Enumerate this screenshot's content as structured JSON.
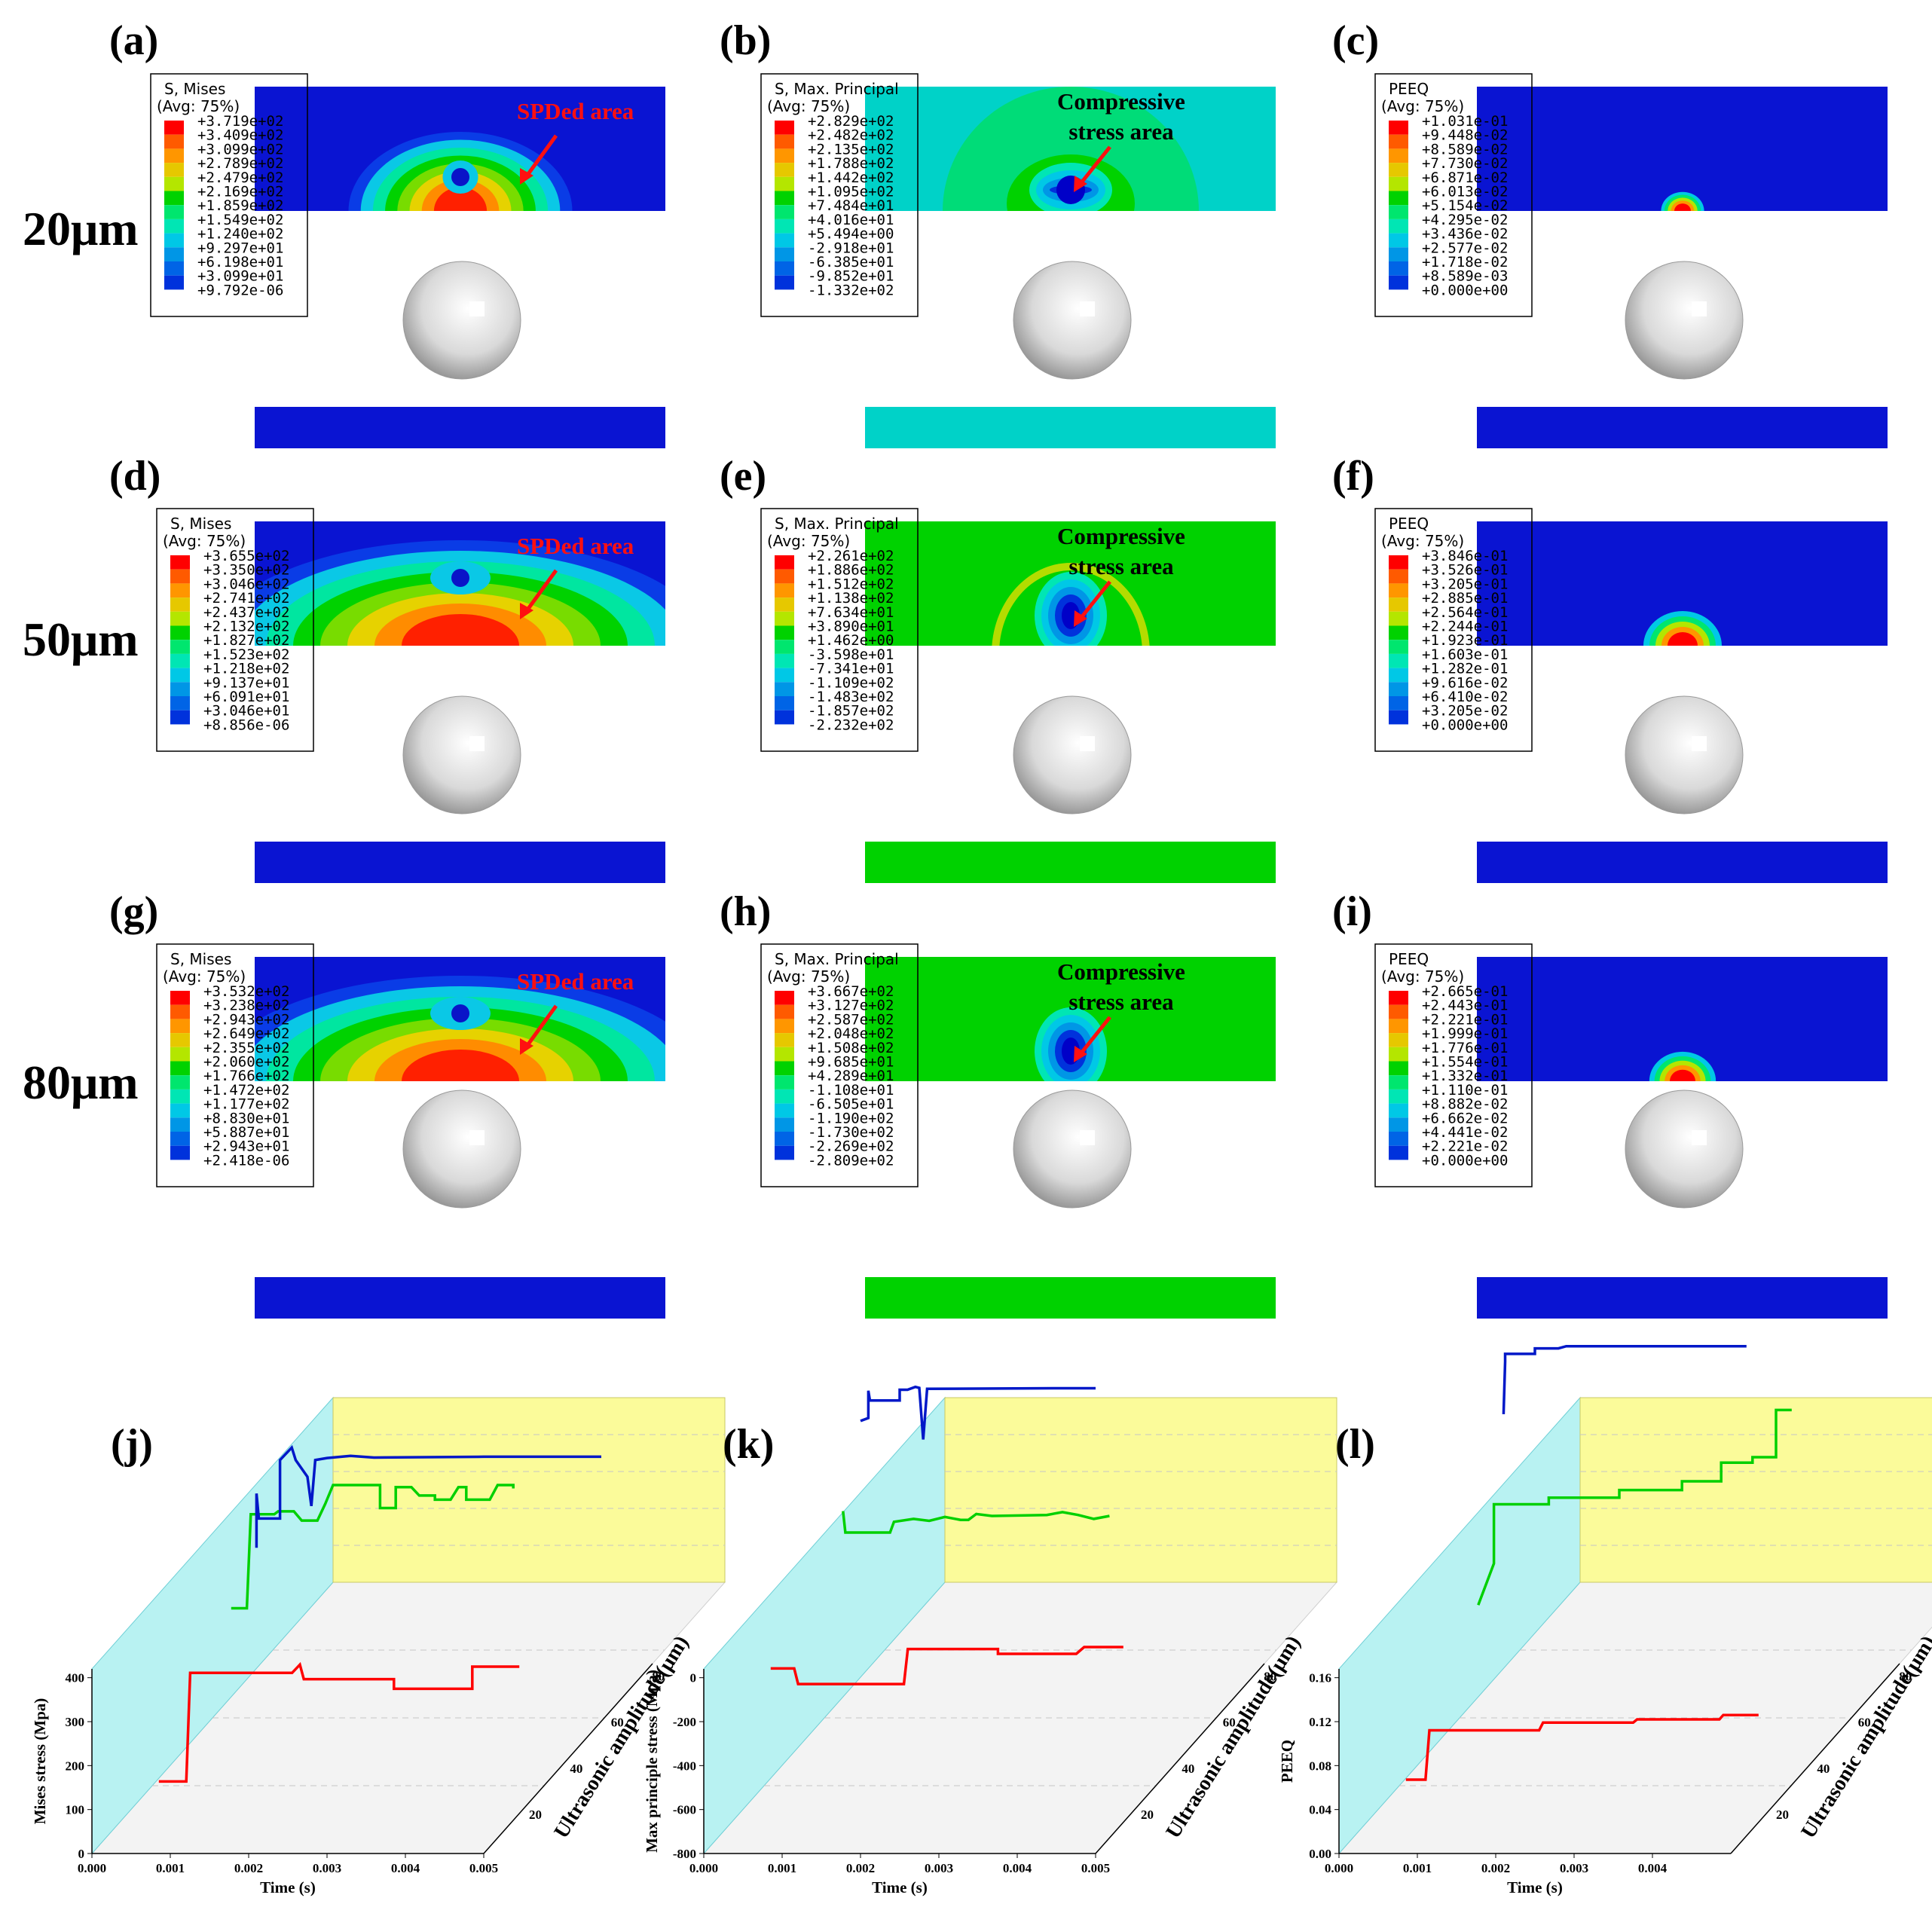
{
  "figure": {
    "rows": [
      {
        "label": "20μm",
        "plate": [
          "#0a14d2",
          "#00d2c8",
          "#0a14d2"
        ]
      },
      {
        "label": "50μm",
        "plate": [
          "#0a14d2",
          "#00d200",
          "#0a14d2"
        ]
      },
      {
        "label": "80μm",
        "plate": [
          "#0a14d2",
          "#00d200",
          "#0a14d2"
        ]
      }
    ],
    "panels": [
      {
        "id": "(a)",
        "variable": "S, Mises",
        "avg": "(Avg: 75%)",
        "values": [
          "+3.719e+02",
          "+3.409e+02",
          "+3.099e+02",
          "+2.789e+02",
          "+2.479e+02",
          "+2.169e+02",
          "+1.859e+02",
          "+1.549e+02",
          "+1.240e+02",
          "+9.297e+01",
          "+6.198e+01",
          "+3.099e+01",
          "+9.792e-06"
        ],
        "annotation": [
          "SPDed area"
        ]
      },
      {
        "id": "(b)",
        "variable": "S, Max. Principal",
        "avg": "(Avg: 75%)",
        "values": [
          "+2.829e+02",
          "+2.482e+02",
          "+2.135e+02",
          "+1.788e+02",
          "+1.442e+02",
          "+1.095e+02",
          "+7.484e+01",
          "+4.016e+01",
          "+5.494e+00",
          "-2.918e+01",
          "-6.385e+01",
          "-9.852e+01",
          "-1.332e+02"
        ],
        "annotation": [
          "Compressive",
          "stress area"
        ]
      },
      {
        "id": "(c)",
        "variable": "PEEQ",
        "avg": "(Avg: 75%)",
        "values": [
          "+1.031e-01",
          "+9.448e-02",
          "+8.589e-02",
          "+7.730e-02",
          "+6.871e-02",
          "+6.013e-02",
          "+5.154e-02",
          "+4.295e-02",
          "+3.436e-02",
          "+2.577e-02",
          "+1.718e-02",
          "+8.589e-03",
          "+0.000e+00"
        ],
        "annotation": []
      },
      {
        "id": "(d)",
        "variable": "S, Mises",
        "avg": "(Avg: 75%)",
        "values": [
          "+3.655e+02",
          "+3.350e+02",
          "+3.046e+02",
          "+2.741e+02",
          "+2.437e+02",
          "+2.132e+02",
          "+1.827e+02",
          "+1.523e+02",
          "+1.218e+02",
          "+9.137e+01",
          "+6.091e+01",
          "+3.046e+01",
          "+8.856e-06"
        ],
        "annotation": [
          "SPDed area"
        ]
      },
      {
        "id": "(e)",
        "variable": "S, Max. Principal",
        "avg": "(Avg: 75%)",
        "values": [
          "+2.261e+02",
          "+1.886e+02",
          "+1.512e+02",
          "+1.138e+02",
          "+7.634e+01",
          "+3.890e+01",
          "+1.462e+00",
          "-3.598e+01",
          "-7.341e+01",
          "-1.109e+02",
          "-1.483e+02",
          "-1.857e+02",
          "-2.232e+02"
        ],
        "annotation": [
          "Compressive",
          "stress area"
        ]
      },
      {
        "id": "(f)",
        "variable": "PEEQ",
        "avg": "(Avg: 75%)",
        "values": [
          "+3.846e-01",
          "+3.526e-01",
          "+3.205e-01",
          "+2.885e-01",
          "+2.564e-01",
          "+2.244e-01",
          "+1.923e-01",
          "+1.603e-01",
          "+1.282e-01",
          "+9.616e-02",
          "+6.410e-02",
          "+3.205e-02",
          "+0.000e+00"
        ],
        "annotation": []
      },
      {
        "id": "(g)",
        "variable": "S, Mises",
        "avg": "(Avg: 75%)",
        "values": [
          "+3.532e+02",
          "+3.238e+02",
          "+2.943e+02",
          "+2.649e+02",
          "+2.355e+02",
          "+2.060e+02",
          "+1.766e+02",
          "+1.472e+02",
          "+1.177e+02",
          "+8.830e+01",
          "+5.887e+01",
          "+2.943e+01",
          "+2.418e-06"
        ],
        "annotation": [
          "SPDed area"
        ]
      },
      {
        "id": "(h)",
        "variable": "S, Max. Principal",
        "avg": "(Avg: 75%)",
        "values": [
          "+3.667e+02",
          "+3.127e+02",
          "+2.587e+02",
          "+2.048e+02",
          "+1.508e+02",
          "+9.685e+01",
          "+4.289e+01",
          "-1.108e+01",
          "-6.505e+01",
          "-1.190e+02",
          "-1.730e+02",
          "-2.269e+02",
          "-2.809e+02"
        ],
        "annotation": [
          "Compressive",
          "stress area"
        ]
      },
      {
        "id": "(i)",
        "variable": "PEEQ",
        "avg": "(Avg: 75%)",
        "values": [
          "+2.665e-01",
          "+2.443e-01",
          "+2.221e-01",
          "+1.999e-01",
          "+1.776e-01",
          "+1.554e-01",
          "+1.332e-01",
          "+1.110e-01",
          "+8.882e-02",
          "+6.662e-02",
          "+4.441e-02",
          "+2.221e-02",
          "+0.000e+00"
        ],
        "annotation": []
      }
    ],
    "legend_colors": [
      "#ff0000",
      "#ff5a00",
      "#ff9600",
      "#e6c800",
      "#b4e600",
      "#00d200",
      "#00e66e",
      "#00e6b4",
      "#00c8e6",
      "#0096e6",
      "#0064e6",
      "#0032dc",
      "#0000c8"
    ]
  },
  "chart_data": [
    {
      "id": "(j)",
      "type": "line3d",
      "title": "",
      "xlabel": "Time (s)",
      "ylabel": "Mises stress (Mpa)",
      "zlabel": "Ultrasonic amplitude(μm)",
      "xlim": [
        0,
        0.005
      ],
      "ylim": [
        0,
        420
      ],
      "xticks": [
        "0.000",
        "0.001",
        "0.002",
        "0.003",
        "0.004",
        "0.005"
      ],
      "yticks": [
        "0",
        "100",
        "200",
        "300",
        "400"
      ],
      "zticks": [
        "20",
        "40",
        "60",
        "80"
      ],
      "series": [
        {
          "name": "20μm",
          "color": "#ff0000",
          "depth": 0.0,
          "points": [
            [
              0.0007,
              140
            ],
            [
              0.00105,
              140
            ],
            [
              0.0011,
              400
            ],
            [
              0.0024,
              400
            ],
            [
              0.0025,
              420
            ],
            [
              0.00255,
              385
            ],
            [
              0.0037,
              385
            ],
            [
              0.0037,
              362
            ],
            [
              0.0047,
              362
            ],
            [
              0.0047,
              415
            ],
            [
              0.0053,
              415
            ]
          ]
        },
        {
          "name": "50μm",
          "color": "#00d000",
          "depth": 0.5,
          "points": [
            [
              0.0007,
              360
            ],
            [
              0.0009,
              360
            ],
            [
              0.00095,
              585
            ],
            [
              0.00125,
              585
            ],
            [
              0.0013,
              592
            ],
            [
              0.0015,
              592
            ],
            [
              0.0016,
              570
            ],
            [
              0.0018,
              570
            ],
            [
              0.0019,
              610
            ],
            [
              0.002,
              655
            ],
            [
              0.0026,
              655
            ],
            [
              0.0026,
              600
            ],
            [
              0.0028,
              600
            ],
            [
              0.0028,
              650
            ],
            [
              0.003,
              650
            ],
            [
              0.0031,
              630
            ],
            [
              0.0033,
              630
            ],
            [
              0.0033,
              620
            ],
            [
              0.0035,
              620
            ],
            [
              0.0036,
              650
            ],
            [
              0.0037,
              650
            ],
            [
              0.0037,
              620
            ],
            [
              0.004,
              620
            ],
            [
              0.0041,
              655
            ],
            [
              0.0043,
              655
            ],
            [
              0.0043,
              647
            ]
          ]
        },
        {
          "name": "80μm",
          "color": "#0018c8",
          "depth": 1.0,
          "points": [
            [
              0.0001,
              310
            ],
            [
              0.0001,
              440
            ],
            [
              0.00013,
              380
            ],
            [
              0.0004,
              380
            ],
            [
              0.0004,
              520
            ],
            [
              0.00055,
              550
            ],
            [
              0.0006,
              520
            ],
            [
              0.00075,
              480
            ],
            [
              0.0008,
              410
            ],
            [
              0.00085,
              520
            ],
            [
              0.001,
              525
            ],
            [
              0.0013,
              530
            ],
            [
              0.0016,
              526
            ],
            [
              0.003,
              528
            ],
            [
              0.0045,
              528
            ]
          ]
        }
      ]
    },
    {
      "id": "(k)",
      "type": "line3d",
      "title": "",
      "xlabel": "Time (s)",
      "ylabel": "Max principle stress (Mpa)",
      "zlabel": "Ultrasonic amplitude(μm)",
      "xlim": [
        0,
        0.005
      ],
      "ylim": [
        -800,
        100
      ],
      "xticks": [
        "0.000",
        "0.001",
        "0.002",
        "0.003",
        "0.004",
        "0.005"
      ],
      "yticks": [
        "-800",
        "-600",
        "-400",
        "-200",
        "0"
      ],
      "zticks": [
        "20",
        "40",
        "60",
        "80"
      ],
      "series": [
        {
          "name": "20μm",
          "color": "#ff0000",
          "depth": 0.0,
          "points": [
            [
              0.0007,
              80
            ],
            [
              0.001,
              80
            ],
            [
              0.00105,
              0
            ],
            [
              0.0024,
              0
            ],
            [
              0.00245,
              180
            ],
            [
              0.0036,
              180
            ],
            [
              0.0036,
              155
            ],
            [
              0.0046,
              155
            ],
            [
              0.0047,
              190
            ],
            [
              0.0052,
              190
            ]
          ]
        },
        {
          "name": "50μm",
          "color": "#00d000",
          "depth": 0.5,
          "points": [
            [
              0.0007,
              470
            ],
            [
              0.00073,
              360
            ],
            [
              0.0013,
              360
            ],
            [
              0.00135,
              415
            ],
            [
              0.0016,
              430
            ],
            [
              0.0018,
              420
            ],
            [
              0.002,
              440
            ],
            [
              0.0022,
              425
            ],
            [
              0.0023,
              425
            ],
            [
              0.0024,
              455
            ],
            [
              0.0026,
              445
            ],
            [
              0.0033,
              450
            ],
            [
              0.0035,
              465
            ],
            [
              0.0037,
              450
            ],
            [
              0.0039,
              430
            ],
            [
              0.0041,
              445
            ]
          ]
        },
        {
          "name": "80μm",
          "color": "#0018c8",
          "depth": 1.0,
          "points": [
            [
              0.0,
              515
            ],
            [
              0.0001,
              530
            ],
            [
              0.0001,
              670
            ],
            [
              0.00012,
              620
            ],
            [
              0.0005,
              620
            ],
            [
              0.0005,
              675
            ],
            [
              0.0006,
              675
            ],
            [
              0.0007,
              690
            ],
            [
              0.00075,
              685
            ],
            [
              0.0008,
              420
            ],
            [
              0.00085,
              680
            ],
            [
              0.0025,
              683
            ],
            [
              0.003,
              683
            ]
          ]
        }
      ]
    },
    {
      "id": "(l)",
      "type": "line3d",
      "title": "",
      "xlabel": "Time (s)",
      "ylabel": "PEEQ",
      "zlabel": "Ultrasonic amplitude(μm)",
      "xlim": [
        0,
        0.005
      ],
      "ylim": [
        0,
        0.16
      ],
      "xticks": [
        "0.000",
        "0.001",
        "0.002",
        "0.003",
        "0.004"
      ],
      "yticks": [
        "0.00",
        "0.04",
        "0.08",
        "0.12",
        "0.16"
      ],
      "zticks": [
        "20",
        "40",
        "60",
        "80"
      ],
      "series": [
        {
          "name": "20μm",
          "color": "#ff0000",
          "depth": 0.0,
          "points": [
            [
              0.0007,
              0.055
            ],
            [
              0.00095,
              0.055
            ],
            [
              0.001,
              0.1
            ],
            [
              0.0024,
              0.1
            ],
            [
              0.00245,
              0.107
            ],
            [
              0.0036,
              0.107
            ],
            [
              0.00365,
              0.11
            ],
            [
              0.0047,
              0.11
            ],
            [
              0.00475,
              0.114
            ],
            [
              0.0052,
              0.114
            ]
          ]
        },
        {
          "name": "50μm",
          "color": "#00d000",
          "depth": 0.5,
          "points": [
            [
              0.0007,
              0.14
            ],
            [
              0.0009,
              0.178
            ],
            [
              0.0009,
              0.232
            ],
            [
              0.0016,
              0.232
            ],
            [
              0.0016,
              0.238
            ],
            [
              0.0025,
              0.238
            ],
            [
              0.0025,
              0.245
            ],
            [
              0.0033,
              0.245
            ],
            [
              0.0033,
              0.253
            ],
            [
              0.0038,
              0.253
            ],
            [
              0.0038,
              0.27
            ],
            [
              0.0042,
              0.27
            ],
            [
              0.0042,
              0.275
            ],
            [
              0.0045,
              0.275
            ],
            [
              0.0045,
              0.318
            ],
            [
              0.0047,
              0.318
            ]
          ]
        },
        {
          "name": "80μm",
          "color": "#0018c8",
          "depth": 1.0,
          "points": [
            [
              0.0001,
              0.24
            ],
            [
              0.00012,
              0.288
            ],
            [
              0.00012,
              0.295
            ],
            [
              0.0005,
              0.295
            ],
            [
              0.0005,
              0.3
            ],
            [
              0.0008,
              0.3
            ],
            [
              0.0009,
              0.302
            ],
            [
              0.0032,
              0.302
            ]
          ]
        }
      ]
    }
  ]
}
